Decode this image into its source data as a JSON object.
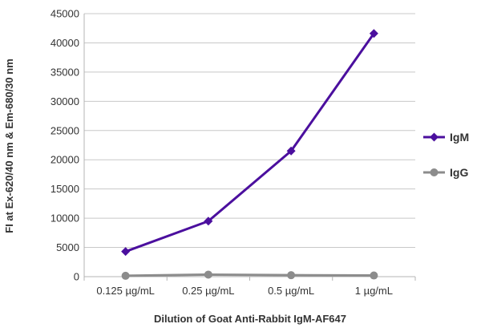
{
  "chart_data": {
    "type": "line",
    "title": "",
    "xlabel": "Dilution of Goat Anti-Rabbit IgM-AF647",
    "ylabel": "FI at Ex-620/40 nm & Em-680/30 nm",
    "categories": [
      "0.125 µg/mL",
      "0.25 µg/mL",
      "0.5 µg/mL",
      "1 µg/mL"
    ],
    "ylim": [
      0,
      45000
    ],
    "yticks": [
      0,
      5000,
      10000,
      15000,
      20000,
      25000,
      30000,
      35000,
      40000,
      45000
    ],
    "grid": true,
    "legend_position": "right",
    "series": [
      {
        "name": "IgM",
        "values": [
          4300,
          9500,
          21500,
          41600
        ],
        "color": "#4b0f9e",
        "marker": "diamond"
      },
      {
        "name": "IgG",
        "values": [
          150,
          350,
          250,
          200
        ],
        "color": "#8c8c8c",
        "marker": "circle"
      }
    ]
  }
}
